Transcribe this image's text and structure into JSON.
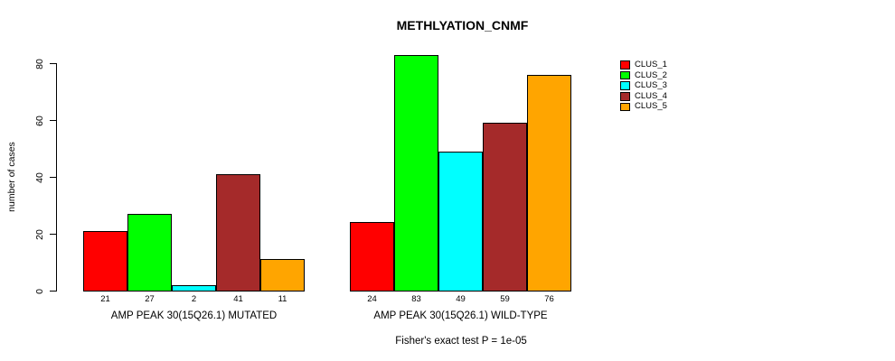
{
  "title": "METHLYATION_CNMF",
  "ylabel": "number of cases",
  "footer": "Fisher's exact test P = 1e-05",
  "chart_data": {
    "type": "bar",
    "title": "METHLYATION_CNMF",
    "xlabel": "",
    "ylabel": "number of cases",
    "ylim": [
      0,
      80
    ],
    "yticks": [
      0,
      20,
      40,
      60,
      80
    ],
    "grid": false,
    "legend_position": "right",
    "categories": [
      "AMP PEAK 30(15Q26.1) MUTATED",
      "AMP PEAK 30(15Q26.1) WILD-TYPE"
    ],
    "series": [
      {
        "name": "CLUS_1",
        "color": "#FF0000",
        "values": [
          21,
          24
        ]
      },
      {
        "name": "CLUS_2",
        "color": "#00FF00",
        "values": [
          27,
          83
        ]
      },
      {
        "name": "CLUS_3",
        "color": "#00FFFF",
        "values": [
          2,
          49
        ]
      },
      {
        "name": "CLUS_4",
        "color": "#A52A2A",
        "values": [
          41,
          59
        ]
      },
      {
        "name": "CLUS_5",
        "color": "#FFA500",
        "values": [
          11,
          76
        ]
      }
    ],
    "groups": [
      {
        "label": "AMP PEAK 30(15Q26.1) MUTATED",
        "values": [
          21,
          27,
          2,
          41,
          11
        ]
      },
      {
        "label": "AMP PEAK 30(15Q26.1) WILD-TYPE",
        "values": [
          24,
          83,
          49,
          59,
          76
        ]
      }
    ],
    "bar_value_labels": [
      [
        21,
        27,
        2,
        41,
        11
      ],
      [
        24,
        83,
        49,
        59,
        76
      ]
    ],
    "legend_entries": [
      "CLUS_1",
      "CLUS_2",
      "CLUS_3",
      "CLUS_4",
      "CLUS_5"
    ],
    "annotation": "Fisher's exact test P = 1e-05"
  }
}
